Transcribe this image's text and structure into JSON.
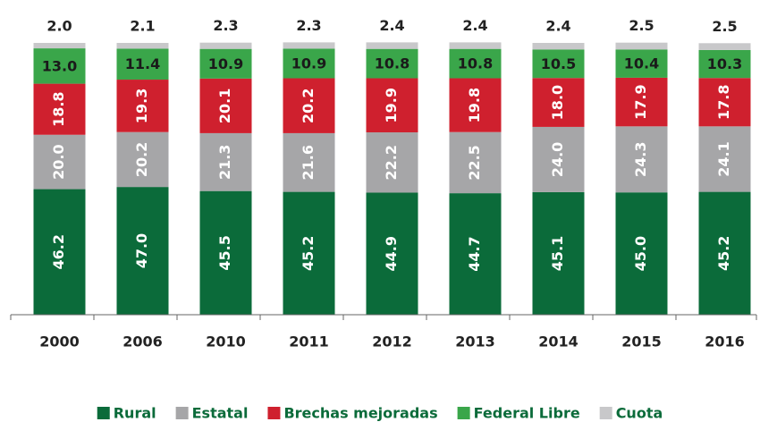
{
  "chart_data": {
    "type": "stacked_bar",
    "categories": [
      "2000",
      "2006",
      "2010",
      "2011",
      "2012",
      "2013",
      "2014",
      "2015",
      "2016"
    ],
    "series": [
      {
        "name": "Rural",
        "color": "#0b6b3a",
        "values": [
          46.2,
          47.0,
          45.5,
          45.2,
          44.9,
          44.7,
          45.1,
          45.0,
          45.2
        ],
        "value_labels": [
          "46.2",
          "47.0",
          "45.5",
          "45.2",
          "44.9",
          "44.7",
          "45.1",
          "45.0",
          "45.2"
        ]
      },
      {
        "name": "Estatal",
        "color": "#a6a6a8",
        "values": [
          20.0,
          20.2,
          21.3,
          21.6,
          22.2,
          22.5,
          24.0,
          24.3,
          24.1
        ],
        "value_labels": [
          "20.0",
          "20.2",
          "21.3",
          "21.6",
          "22.2",
          "22.5",
          "24.0",
          "24.3",
          "24.1"
        ]
      },
      {
        "name": "Brechas mejoradas",
        "color": "#cf202e",
        "values": [
          18.8,
          19.3,
          20.1,
          20.2,
          19.9,
          19.8,
          18.0,
          17.9,
          17.8
        ],
        "value_labels": [
          "18.8",
          "19.3",
          "20.1",
          "20.2",
          "19.9",
          "19.8",
          "18.0",
          "17.9",
          "17.8"
        ]
      },
      {
        "name": "Federal Libre",
        "color": "#3aa64a",
        "values": [
          13.0,
          11.4,
          10.9,
          10.9,
          10.8,
          10.8,
          10.5,
          10.4,
          10.3
        ],
        "value_labels": [
          "13.0",
          "11.4",
          "10.9",
          "10.9",
          "10.8",
          "10.8",
          "10.5",
          "10.4",
          "10.3"
        ]
      },
      {
        "name": "Cuota",
        "color": "#c8c8ca",
        "values": [
          2.0,
          2.1,
          2.3,
          2.3,
          2.4,
          2.4,
          2.4,
          2.5,
          2.5
        ],
        "value_labels": [
          "2.0",
          "2.1",
          "2.3",
          "2.3",
          "2.4",
          "2.4",
          "2.4",
          "2.5",
          "2.5"
        ]
      }
    ],
    "ylim": [
      0,
      100
    ],
    "legend": "bottom"
  }
}
